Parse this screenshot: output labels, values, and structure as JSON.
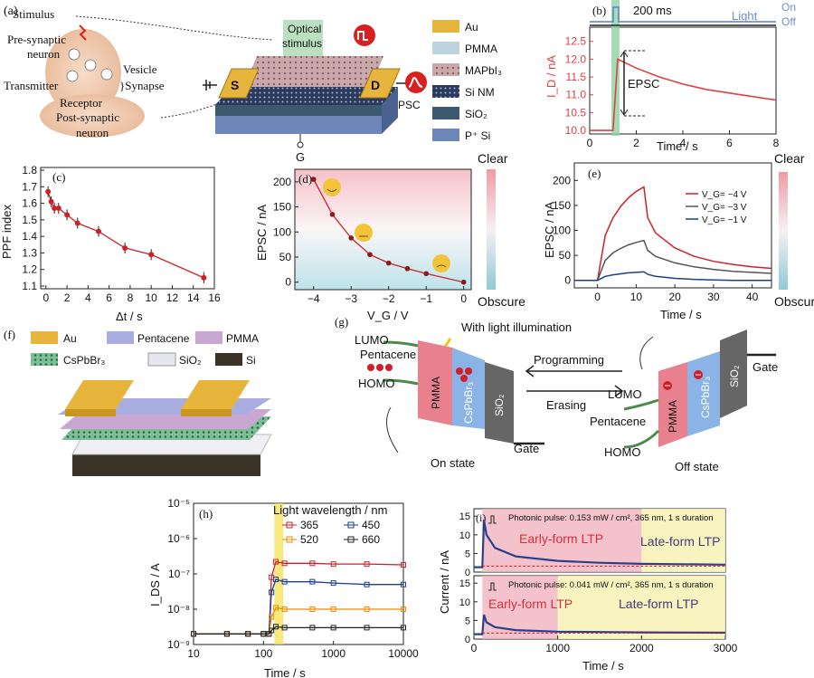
{
  "panel_a": {
    "label": "(a)",
    "bio": {
      "stimulus": "Stimulus",
      "pre": [
        "Pre-synaptic",
        "neuron"
      ],
      "vesicle": "Vesicle",
      "transmitter": "Transmitter",
      "synapse": "}Synapse",
      "receptor": "Receptor",
      "post": [
        "Post-synaptic",
        "neuron"
      ]
    },
    "device": {
      "optical": [
        "Optical",
        "stimulus"
      ],
      "s": "S",
      "d": "D",
      "g": "G",
      "psc": "PSC"
    },
    "legend": [
      {
        "label": "Au",
        "color": "#e8b53c"
      },
      {
        "label": "PMMA",
        "color": "#bcd4e0"
      },
      {
        "label": "MAPbI₃",
        "color": "#c9a9a9"
      },
      {
        "label": "Si NM",
        "color": "#2b3a5c"
      },
      {
        "label": "SiO₂",
        "color": "#3b5a70"
      },
      {
        "label": "P⁺ Si",
        "color": "#6f86b8"
      }
    ]
  },
  "panel_b": {
    "label": "(b)",
    "pulse": "200 ms",
    "light": "Light",
    "on": "On",
    "off": "Off",
    "ylabel": "I_D / nA",
    "xlabel": "Time / s",
    "epsc": "EPSC",
    "xticks": [
      "0",
      "2",
      "4",
      "6",
      "8"
    ],
    "yticks": [
      "10.0",
      "10.5",
      "11.0",
      "11.5",
      "12.0",
      "12.5"
    ]
  },
  "panel_c": {
    "label": "(c)",
    "ylabel": "PPF index",
    "xlabel": "Δt / s",
    "xticks": [
      "0",
      "2",
      "4",
      "6",
      "8",
      "10",
      "12",
      "14",
      "16"
    ],
    "yticks": [
      "1.1",
      "1.2",
      "1.3",
      "1.4",
      "1.5",
      "1.6",
      "1.7",
      "1.8"
    ]
  },
  "panel_d": {
    "label": "(d)",
    "ylabel": "EPSC / nA",
    "xlabel": "V_G / V",
    "clear": "Clear",
    "obscure": "Obscure",
    "xticks": [
      "−4",
      "−3",
      "−2",
      "−1",
      "0"
    ],
    "yticks": [
      "0",
      "50",
      "100",
      "150",
      "200"
    ]
  },
  "panel_e": {
    "label": "(e)",
    "ylabel": "EPSC / nA",
    "xlabel": "Time / s",
    "clear": "Clear",
    "obscure": "Obscure",
    "legend": [
      "V_G= −4 V",
      "V_G= −3 V",
      "V_G= −1 V"
    ],
    "xticks": [
      "0",
      "10",
      "20",
      "30",
      "40"
    ],
    "yticks": [
      "0",
      "50",
      "100",
      "150",
      "200"
    ]
  },
  "panel_f": {
    "label": "(f)",
    "legend": [
      {
        "label": "Au",
        "color": "#e8b53c"
      },
      {
        "label": "Pentacene",
        "color": "#a9aee0"
      },
      {
        "label": "PMMA",
        "color": "#c8a8d0"
      },
      {
        "label": "CsPbBr₃",
        "color": "#7dbf96"
      },
      {
        "label": "SiO₂",
        "color": "#e6e6ee"
      },
      {
        "label": "Si",
        "color": "#3a3326"
      }
    ]
  },
  "panel_g": {
    "label": "(g)",
    "illum": "With light illumination",
    "lumo": "LUMO",
    "homo": "HOMO",
    "pentacene": "Pentacene",
    "pmma": "PMMA",
    "cspbbr3": "CsPbBr₃",
    "sio2": "SiO₂",
    "gate": "Gate",
    "programming": "Programming",
    "erasing": "Erasing",
    "on_state": "On state",
    "off_state": "Off state"
  },
  "panel_h": {
    "label": "(h)",
    "ylabel": "I_DS / A",
    "xlabel": "Time / s",
    "legend_title": "Light wavelength / nm",
    "series": [
      {
        "name": "365",
        "color": "#d11f2a"
      },
      {
        "name": "450",
        "color": "#1c3f8f"
      },
      {
        "name": "520",
        "color": "#f08a00"
      },
      {
        "name": "660",
        "color": "#222222"
      }
    ],
    "xticks": [
      "10",
      "100",
      "1000",
      "10000"
    ],
    "yticks": [
      "10⁻⁹",
      "10⁻⁸",
      "10⁻⁷",
      "10⁻⁶",
      "10⁻⁵"
    ]
  },
  "panel_i": {
    "label": "(i)",
    "ylabel": "Current / nA",
    "xlabel": "Time / s",
    "top": {
      "pulse": "Photonic pulse: 0.153 mW / cm², 365 nm, 1 s duration",
      "early": "Early-form LTP",
      "late": "Late-form LTP"
    },
    "bottom": {
      "pulse": "Photonic pulse: 0.041 mW / cm², 365 nm, 1 s duration",
      "early": "Early-form LTP",
      "late": "Late-form LTP"
    },
    "xticks": [
      "0",
      "1000",
      "2000",
      "3000"
    ],
    "yticks_top": [
      "0",
      "5",
      "10",
      "15"
    ],
    "yticks_bottom": [
      "0",
      "5",
      "10",
      "15"
    ]
  },
  "chart_data": [
    {
      "panel": "b",
      "type": "line",
      "xlabel": "Time / s",
      "ylabel": "I_D / nA",
      "xlim": [
        0,
        8
      ],
      "ylim": [
        9.9,
        12.9
      ],
      "x": [
        0,
        0.8,
        1.0,
        1.2,
        2,
        3,
        4,
        5,
        6,
        7,
        8
      ],
      "series": [
        {
          "values": [
            10.0,
            10.0,
            10.0,
            12.0,
            11.75,
            11.5,
            11.3,
            11.15,
            11.05,
            10.95,
            10.85
          ]
        }
      ]
    },
    {
      "panel": "c",
      "type": "scatter",
      "xlabel": "Δt / s",
      "ylabel": "PPF index",
      "xlim": [
        -0.5,
        16
      ],
      "ylim": [
        1.1,
        1.8
      ],
      "x": [
        0.2,
        0.5,
        0.8,
        1.2,
        2,
        3,
        5,
        7.5,
        10,
        15
      ],
      "series": [
        {
          "values": [
            1.67,
            1.61,
            1.57,
            1.57,
            1.53,
            1.48,
            1.43,
            1.33,
            1.29,
            1.15
          ]
        }
      ]
    },
    {
      "panel": "d",
      "type": "scatter",
      "xlabel": "V_G / V",
      "ylabel": "EPSC / nA",
      "xlim": [
        -4.5,
        0.2
      ],
      "ylim": [
        -15,
        225
      ],
      "x": [
        -4,
        -3.5,
        -3,
        -2.5,
        -2,
        -1.5,
        -1,
        0
      ],
      "series": [
        {
          "values": [
            205,
            135,
            88,
            55,
            38,
            27,
            17,
            0
          ]
        }
      ]
    },
    {
      "panel": "e",
      "type": "line",
      "xlabel": "Time / s",
      "ylabel": "EPSC / nA",
      "xlim": [
        -6,
        45
      ],
      "ylim": [
        -15,
        235
      ],
      "x": [
        -6,
        0,
        2,
        4,
        6,
        8,
        10,
        12,
        13,
        15,
        20,
        25,
        30,
        35,
        40,
        45
      ],
      "series": [
        {
          "name": "V_G= −4 V",
          "values": [
            0,
            0,
            90,
            125,
            148,
            165,
            178,
            187,
            125,
            95,
            65,
            48,
            38,
            32,
            27,
            24
          ]
        },
        {
          "name": "V_G= −3 V",
          "values": [
            0,
            0,
            40,
            55,
            64,
            71,
            76,
            80,
            60,
            48,
            35,
            27,
            22,
            18,
            16,
            14
          ]
        },
        {
          "name": "V_G= −1 V",
          "values": [
            0,
            0,
            8,
            11,
            13,
            15,
            16,
            17,
            12,
            8,
            4,
            2,
            1,
            0,
            0,
            0
          ]
        }
      ]
    },
    {
      "panel": "h",
      "type": "scatter",
      "xlabel": "Time / s",
      "ylabel": "I_DS / A",
      "x_scale": "log",
      "y_scale": "log",
      "xlim": [
        10,
        10000
      ],
      "ylim": [
        1e-09,
        1e-05
      ],
      "x": [
        10,
        30,
        60,
        100,
        120,
        130,
        150,
        200,
        500,
        1000,
        3000,
        10000
      ],
      "series": [
        {
          "name": "365",
          "values": [
            2e-09,
            2e-09,
            2e-09,
            2e-09,
            2e-09,
            8e-08,
            2.2e-07,
            2e-07,
            2e-07,
            1.9e-07,
            1.9e-07,
            1.8e-07
          ]
        },
        {
          "name": "450",
          "values": [
            2e-09,
            2e-09,
            2e-09,
            2e-09,
            2e-09,
            3e-08,
            7e-08,
            6e-08,
            6e-08,
            5.5e-08,
            5e-08,
            5e-08
          ]
        },
        {
          "name": "520",
          "values": [
            2e-09,
            2e-09,
            2e-09,
            2e-09,
            2e-09,
            6e-09,
            1.1e-08,
            1e-08,
            1e-08,
            1e-08,
            1e-08,
            1e-08
          ]
        },
        {
          "name": "660",
          "values": [
            2e-09,
            2e-09,
            2e-09,
            2e-09,
            2e-09,
            2.5e-09,
            3.2e-09,
            3e-09,
            3e-09,
            3e-09,
            3e-09,
            3e-09
          ]
        }
      ]
    },
    {
      "panel": "i-top",
      "type": "line",
      "xlabel": "Time / s",
      "ylabel": "Current / nA",
      "xlim": [
        0,
        3000
      ],
      "ylim": [
        0,
        17
      ],
      "x": [
        0,
        100,
        120,
        150,
        250,
        500,
        1000,
        1500,
        2000,
        3000
      ],
      "series": [
        {
          "values": [
            1.3,
            1.3,
            14,
            10,
            6.5,
            4.2,
            3.0,
            2.5,
            2.2,
            2.0
          ]
        }
      ]
    },
    {
      "panel": "i-bottom",
      "type": "line",
      "xlabel": "Time / s",
      "ylabel": "Current / nA",
      "xlim": [
        0,
        3000
      ],
      "ylim": [
        0,
        17
      ],
      "x": [
        0,
        100,
        120,
        150,
        250,
        500,
        1000,
        1500,
        2000,
        3000
      ],
      "series": [
        {
          "values": [
            1.3,
            1.3,
            6.5,
            4.5,
            3.2,
            2.4,
            2.0,
            1.9,
            1.8,
            1.7
          ]
        }
      ]
    }
  ]
}
